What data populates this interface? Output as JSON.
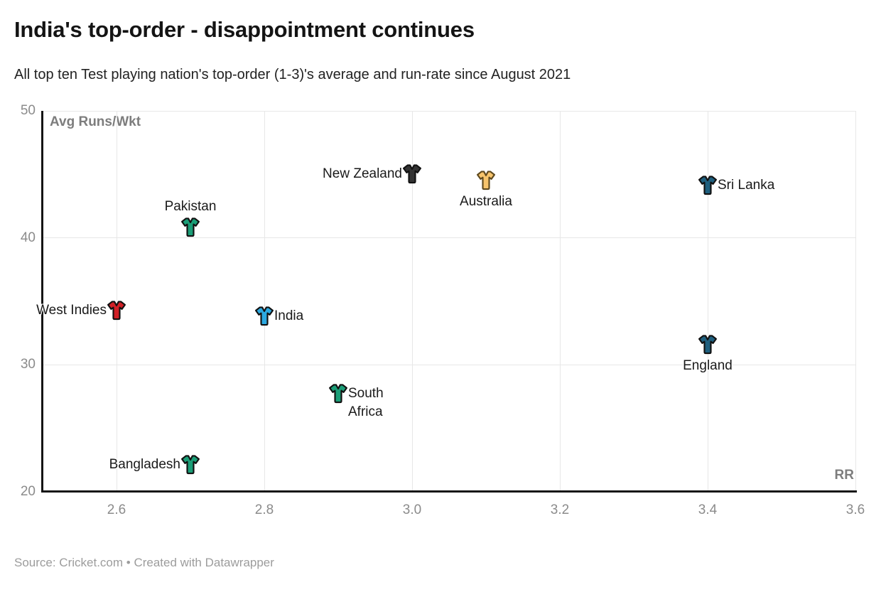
{
  "header": {
    "title": "India's top-order - disappointment continues",
    "subtitle": "All top ten Test playing nation's top-order (1-3)'s average and run-rate since August 2021"
  },
  "footer": {
    "text": "Source: Cricket.com • Created with Datawrapper"
  },
  "chart_data": {
    "type": "scatter",
    "title": "India's top-order - disappointment continues",
    "subtitle": "All top ten Test playing nation's top-order (1-3)'s average and run-rate since August 2021",
    "xlabel": "RR",
    "ylabel": "Avg Runs/Wkt",
    "xlim": [
      2.5,
      3.6
    ],
    "ylim": [
      20,
      50
    ],
    "x_ticks": [
      2.6,
      2.8,
      3.0,
      3.2,
      3.4,
      3.6
    ],
    "y_ticks": [
      20,
      30,
      40,
      50
    ],
    "grid": true,
    "marker": "cricket-jersey",
    "legend": "none",
    "points": [
      {
        "name": "New Zealand",
        "rr": 3.0,
        "avg": 45.0,
        "fill": "#333333",
        "stroke": "#111111",
        "label_position": "left"
      },
      {
        "name": "Australia",
        "rr": 3.1,
        "avg": 44.5,
        "fill": "#f7c46c",
        "stroke": "#5f4a1f",
        "label_position": "below"
      },
      {
        "name": "Sri Lanka",
        "rr": 3.4,
        "avg": 44.1,
        "fill": "#1e5f7e",
        "stroke": "#111111",
        "label_position": "right"
      },
      {
        "name": "Pakistan",
        "rr": 2.7,
        "avg": 40.8,
        "fill": "#1b9e77",
        "stroke": "#111111",
        "label_position": "above"
      },
      {
        "name": "West Indies",
        "rr": 2.6,
        "avg": 34.3,
        "fill": "#d12026",
        "stroke": "#111111",
        "label_position": "left"
      },
      {
        "name": "India",
        "rr": 2.8,
        "avg": 33.8,
        "fill": "#2ca9e1",
        "stroke": "#111111",
        "label_position": "right"
      },
      {
        "name": "England",
        "rr": 3.4,
        "avg": 31.6,
        "fill": "#1e5f7e",
        "stroke": "#111111",
        "label_position": "below"
      },
      {
        "name": "South Africa",
        "rr": 2.9,
        "avg": 27.7,
        "fill": "#1b9e77",
        "stroke": "#111111",
        "label_position": "right",
        "label_lines": [
          "South",
          "Africa"
        ]
      },
      {
        "name": "Bangladesh",
        "rr": 2.7,
        "avg": 22.1,
        "fill": "#1b9e77",
        "stroke": "#111111",
        "label_position": "left"
      }
    ]
  }
}
